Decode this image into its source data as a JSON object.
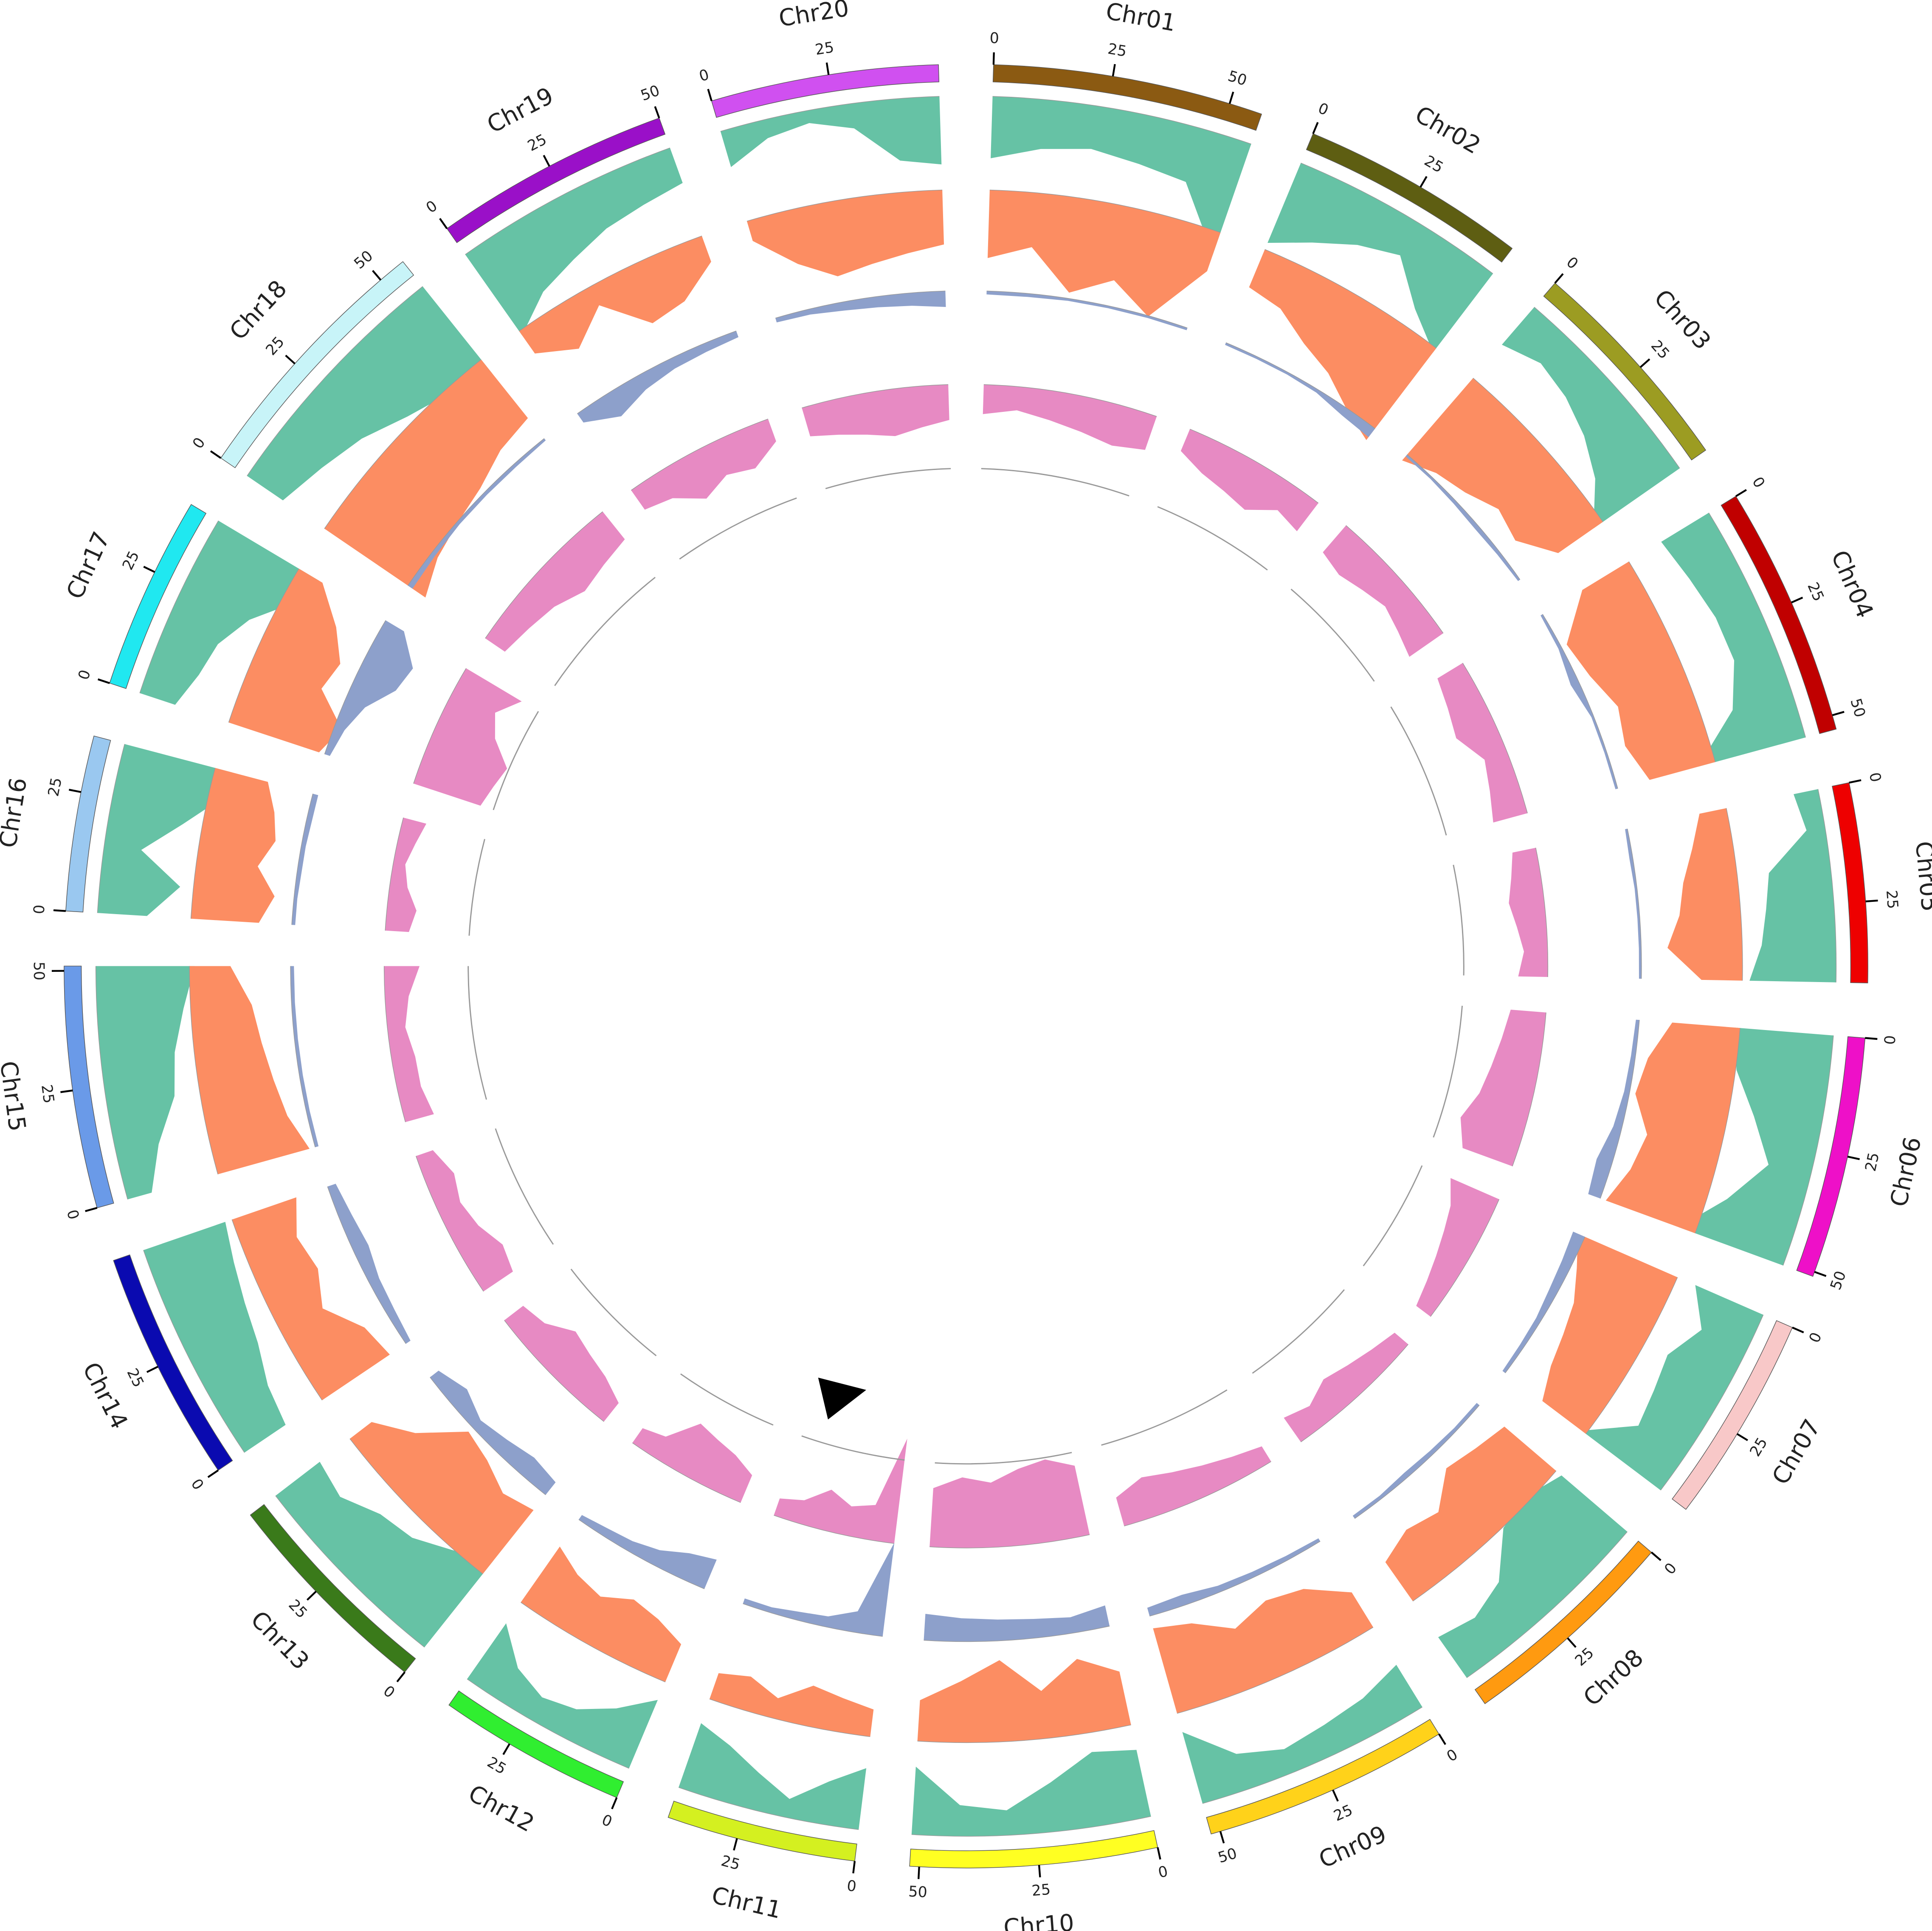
{
  "chart_data": {
    "type": "circos",
    "chromosomes": [
      {
        "name": "Chr01",
        "length": 57,
        "color": "#8b5a12",
        "ticks": [
          0,
          25,
          50
        ]
      },
      {
        "name": "Chr02",
        "length": 48,
        "color": "#5e5e12",
        "ticks": [
          0,
          25
        ]
      },
      {
        "name": "Chr03",
        "length": 47,
        "color": "#9c9c22",
        "ticks": [
          0,
          25
        ]
      },
      {
        "name": "Chr04",
        "length": 53,
        "color": "#c00000",
        "ticks": [
          0,
          25,
          50
        ]
      },
      {
        "name": "Chr05",
        "length": 42,
        "color": "#ee0000",
        "ticks": [
          0,
          25
        ]
      },
      {
        "name": "Chr06",
        "length": 51,
        "color": "#ee10c8",
        "ticks": [
          0,
          25,
          50
        ]
      },
      {
        "name": "Chr07",
        "length": 44,
        "color": "#f8c8c8",
        "ticks": [
          0,
          25
        ]
      },
      {
        "name": "Chr08",
        "length": 47,
        "color": "#ff9a10",
        "ticks": [
          0,
          25
        ]
      },
      {
        "name": "Chr09",
        "length": 52,
        "color": "#ffd21a",
        "ticks": [
          0,
          25,
          50
        ]
      },
      {
        "name": "Chr10",
        "length": 52,
        "color": "#ffff22",
        "ticks": [
          0,
          25,
          50
        ]
      },
      {
        "name": "Chr11",
        "length": 40,
        "color": "#d4f020",
        "ticks": [
          0,
          25
        ]
      },
      {
        "name": "Chr12",
        "length": 40,
        "color": "#30ee30",
        "ticks": [
          0,
          25
        ]
      },
      {
        "name": "Chr13",
        "length": 46,
        "color": "#3a7a1a",
        "ticks": [
          0,
          25
        ]
      },
      {
        "name": "Chr14",
        "length": 49,
        "color": "#0a0ab0",
        "ticks": [
          0,
          25
        ]
      },
      {
        "name": "Chr15",
        "length": 51,
        "color": "#6a9ae8",
        "ticks": [
          0,
          25,
          50
        ]
      },
      {
        "name": "Chr16",
        "length": 37,
        "color": "#9ac8f0",
        "ticks": [
          0,
          25
        ]
      },
      {
        "name": "Chr17",
        "length": 41,
        "color": "#20e8f0",
        "ticks": [
          0,
          25
        ]
      },
      {
        "name": "Chr18",
        "length": 56,
        "color": "#c8f4f8",
        "ticks": [
          0,
          25,
          50
        ]
      },
      {
        "name": "Chr19",
        "length": 50,
        "color": "#9a10c8",
        "ticks": [
          0,
          25,
          50
        ]
      },
      {
        "name": "Chr20",
        "length": 48,
        "color": "#d050f0",
        "ticks": [
          0,
          25
        ]
      }
    ],
    "rlim": [
      0,
      100
    ],
    "tracks": [
      {
        "color": "#66c2a5",
        "values": [
          [
            50,
            40,
            35,
            40,
            45,
            95
          ],
          [
            70,
            55,
            40,
            30,
            60,
            80
          ],
          [
            40,
            30,
            35,
            45,
            60,
            85
          ],
          [
            45,
            40,
            35,
            35,
            50,
            90
          ],
          [
            20,
            15,
            50,
            55,
            60,
            70
          ],
          [
            80,
            75,
            55,
            35,
            60,
            90
          ],
          [
            60,
            40,
            55,
            50,
            45,
            80
          ],
          [
            70,
            80,
            75,
            45,
            35,
            40
          ],
          [
            40,
            30,
            25,
            20,
            30,
            60
          ],
          [
            55,
            60,
            40,
            20,
            25,
            55
          ],
          [
            50,
            35,
            15,
            30,
            45,
            55
          ],
          [
            60,
            40,
            25,
            20,
            30,
            55
          ],
          [
            90,
            75,
            60,
            55,
            40,
            45
          ],
          [
            40,
            45,
            55,
            60,
            65,
            70
          ],
          [
            20,
            35,
            55,
            60,
            70,
            80
          ],
          [
            40,
            65,
            30,
            60,
            85,
            90
          ],
          [
            30,
            40,
            45,
            60,
            85,
            95
          ],
          [
            35,
            45,
            55,
            70,
            80,
            90
          ],
          [
            80,
            60,
            50,
            40,
            35,
            30
          ],
          [
            30,
            15,
            10,
            20,
            50,
            55
          ]
        ]
      },
      {
        "color": "#fc8d62",
        "values": [
          [
            50,
            40,
            70,
            55,
            75,
            30
          ],
          [
            30,
            35,
            50,
            60,
            75,
            85
          ],
          [
            80,
            70,
            65,
            55,
            60,
            40
          ],
          [
            40,
            70,
            65,
            55,
            60,
            50
          ],
          [
            20,
            30,
            40,
            45,
            55,
            30
          ],
          [
            50,
            65,
            70,
            55,
            60,
            70
          ],
          [
            80,
            70,
            60,
            55,
            50,
            40
          ],
          [
            50,
            55,
            60,
            40,
            45,
            35
          ],
          [
            30,
            50,
            55,
            45,
            60,
            65
          ],
          [
            40,
            55,
            35,
            60,
            45,
            30
          ],
          [
            20,
            25,
            30,
            15,
            25,
            20
          ],
          [
            30,
            40,
            45,
            35,
            40,
            50
          ],
          [
            60,
            55,
            65,
            70,
            40,
            20
          ],
          [
            60,
            55,
            35,
            45,
            40,
            50
          ],
          [
            70,
            60,
            55,
            50,
            45,
            30
          ],
          [
            50,
            60,
            45,
            55,
            50,
            40
          ],
          [
            70,
            80,
            55,
            60,
            45,
            20
          ],
          [
            90,
            80,
            75,
            70,
            60,
            55
          ],
          [
            20,
            35,
            15,
            45,
            40,
            20
          ],
          [
            15,
            40,
            55,
            50,
            45,
            40
          ]
        ]
      },
      {
        "color": "#8da0cb",
        "values": [
          [
            3,
            3,
            2,
            2,
            2,
            2
          ],
          [
            2,
            2,
            2,
            3,
            8,
            10
          ],
          [
            2,
            2,
            3,
            4,
            3,
            2
          ],
          [
            2,
            3,
            8,
            2,
            2,
            2
          ],
          [
            2,
            3,
            2,
            2,
            2,
            2
          ],
          [
            3,
            4,
            5,
            8,
            15,
            12
          ],
          [
            12,
            10,
            8,
            5,
            4,
            3
          ],
          [
            3,
            3,
            4,
            5,
            3,
            3
          ],
          [
            3,
            4,
            5,
            6,
            10,
            8
          ],
          [
            20,
            15,
            18,
            20,
            22,
            25
          ],
          [
            90,
            20,
            10,
            8,
            5,
            5
          ],
          [
            30,
            25,
            15,
            10,
            8,
            5
          ],
          [
            15,
            20,
            15,
            10,
            20,
            10
          ],
          [
            5,
            8,
            10,
            15,
            12,
            8
          ],
          [
            3,
            3,
            3,
            3,
            3,
            3
          ],
          [
            3,
            3,
            4,
            4,
            5,
            5
          ],
          [
            5,
            10,
            20,
            40,
            45,
            20
          ],
          [
            5,
            4,
            3,
            3,
            3,
            2
          ],
          [
            10,
            25,
            15,
            10,
            8,
            6
          ],
          [
            4,
            5,
            8,
            10,
            12,
            15
          ]
        ]
      },
      {
        "color": "#e78ac3",
        "values": [
          [
            25,
            20,
            25,
            30,
            35,
            30
          ],
          [
            20,
            30,
            35,
            40,
            25,
            30
          ],
          [
            30,
            35,
            30,
            25,
            30,
            35
          ],
          [
            25,
            30,
            35,
            20,
            25,
            30
          ],
          [
            20,
            25,
            30,
            25,
            20,
            25
          ],
          [
            30,
            35,
            40,
            45,
            55,
            45
          ],
          [
            45,
            35,
            30,
            25,
            20,
            15
          ],
          [
            15,
            20,
            25,
            30,
            20,
            25
          ],
          [
            15,
            20,
            25,
            30,
            35,
            25
          ],
          [
            60,
            70,
            65,
            55,
            60,
            50
          ],
          [
            90,
            30,
            25,
            35,
            20,
            15
          ],
          [
            25,
            35,
            40,
            45,
            20,
            15
          ],
          [
            20,
            30,
            35,
            40,
            25,
            20
          ],
          [
            30,
            35,
            25,
            20,
            25,
            15
          ],
          [
            25,
            20,
            20,
            15,
            20,
            30
          ],
          [
            20,
            25,
            15,
            10,
            15,
            20
          ],
          [
            60,
            65,
            70,
            50,
            40,
            55
          ],
          [
            20,
            25,
            30,
            40,
            35,
            30
          ],
          [
            20,
            25,
            40,
            30,
            35,
            20
          ],
          [
            25,
            30,
            35,
            40,
            35,
            30
          ]
        ]
      }
    ]
  }
}
